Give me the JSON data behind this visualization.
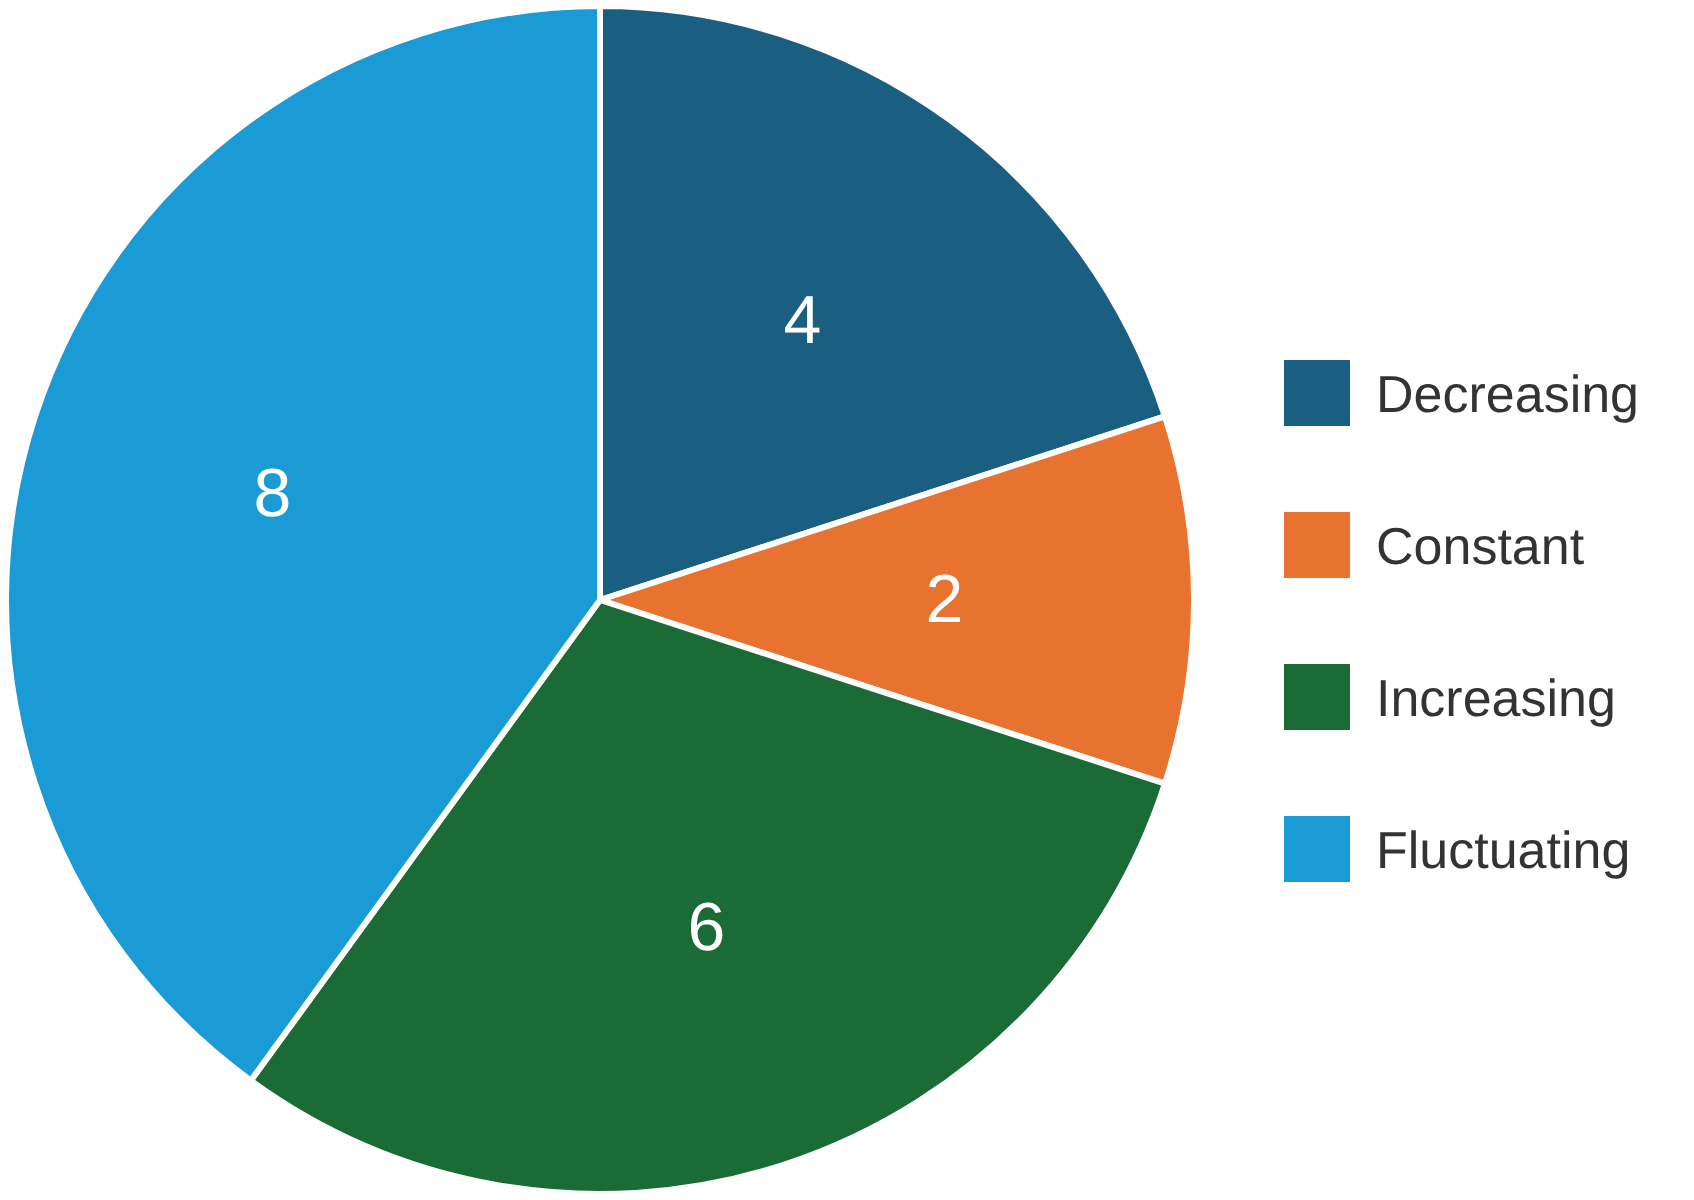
{
  "chart_data": {
    "type": "pie",
    "categories": [
      "Decreasing",
      "Constant",
      "Increasing",
      "Fluctuating"
    ],
    "values": [
      4,
      2,
      6,
      8
    ],
    "colors": [
      "#1a5e82",
      "#e87230",
      "#1b6b37",
      "#1b9bd6"
    ],
    "data_labels": true,
    "legend": "right"
  }
}
